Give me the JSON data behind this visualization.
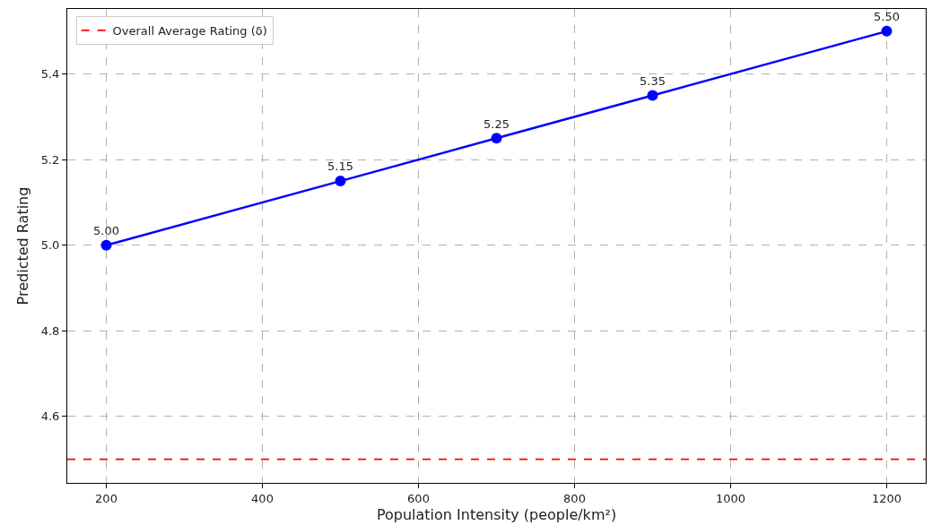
{
  "chart_data": {
    "type": "line",
    "xlabel": "Population Intensity (people/km²)",
    "ylabel": "Predicted Rating",
    "x": [
      200,
      500,
      700,
      900,
      1200
    ],
    "series": [
      {
        "color": "#0000ff",
        "values": [
          5.0,
          5.15,
          5.25,
          5.35,
          5.5
        ],
        "value_labels": [
          "5.00",
          "5.15",
          "5.25",
          "5.35",
          "5.50"
        ]
      }
    ],
    "marker": "circle",
    "line_style": "solid",
    "xlim": [
      150,
      1250
    ],
    "xticks": [
      200,
      400,
      600,
      800,
      1000,
      1200
    ],
    "ylim": [
      4.445,
      5.552
    ],
    "yticks": [
      4.6,
      4.8,
      {
        "value": 5.0,
        "label": "5.0"
      },
      5.2,
      5.4
    ],
    "ref_lines": [
      {
        "axis": "y",
        "value": 4.5,
        "label": "Overall Average Rating (δ)",
        "color": "#ff0000",
        "line_style": "dashed"
      }
    ],
    "grid": true,
    "legend": "top left"
  }
}
